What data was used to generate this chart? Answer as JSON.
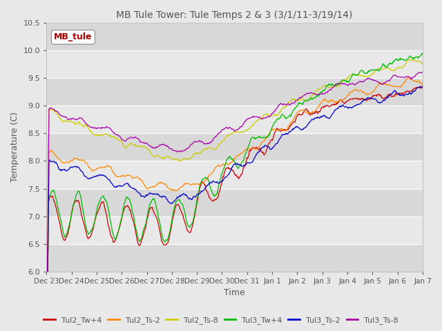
{
  "title": "MB Tule Tower: Tule Temps 2 & 3 (3/1/11-3/19/14)",
  "xlabel": "Time",
  "ylabel": "Temperature (C)",
  "ylim": [
    6.0,
    10.5
  ],
  "yticks": [
    6.0,
    6.5,
    7.0,
    7.5,
    8.0,
    8.5,
    9.0,
    9.5,
    10.0,
    10.5
  ],
  "xtick_labels": [
    "Dec 23",
    "Dec 24",
    "Dec 25",
    "Dec 26",
    "Dec 27",
    "Dec 28",
    "Dec 29",
    "Dec 30",
    "Dec 31",
    "Jan 1",
    "Jan 2",
    "Jan 3",
    "Jan 4",
    "Jan 5",
    "Jan 6",
    "Jan 7"
  ],
  "series_colors": {
    "Tul2_Tw+4": "#cc0000",
    "Tul2_Ts-2": "#ff8800",
    "Tul2_Ts-8": "#cccc00",
    "Tul3_Tw+4": "#00bb00",
    "Tul3_Ts-2": "#0000cc",
    "Tul3_Ts-8": "#aa00aa"
  },
  "legend_label": "MB_tule",
  "background_color": "#e8e8e8",
  "plot_bg_color": "#e8e8e8",
  "grid_color": "#ffffff",
  "band_colors": [
    "#d8d8d8",
    "#e8e8e8"
  ]
}
